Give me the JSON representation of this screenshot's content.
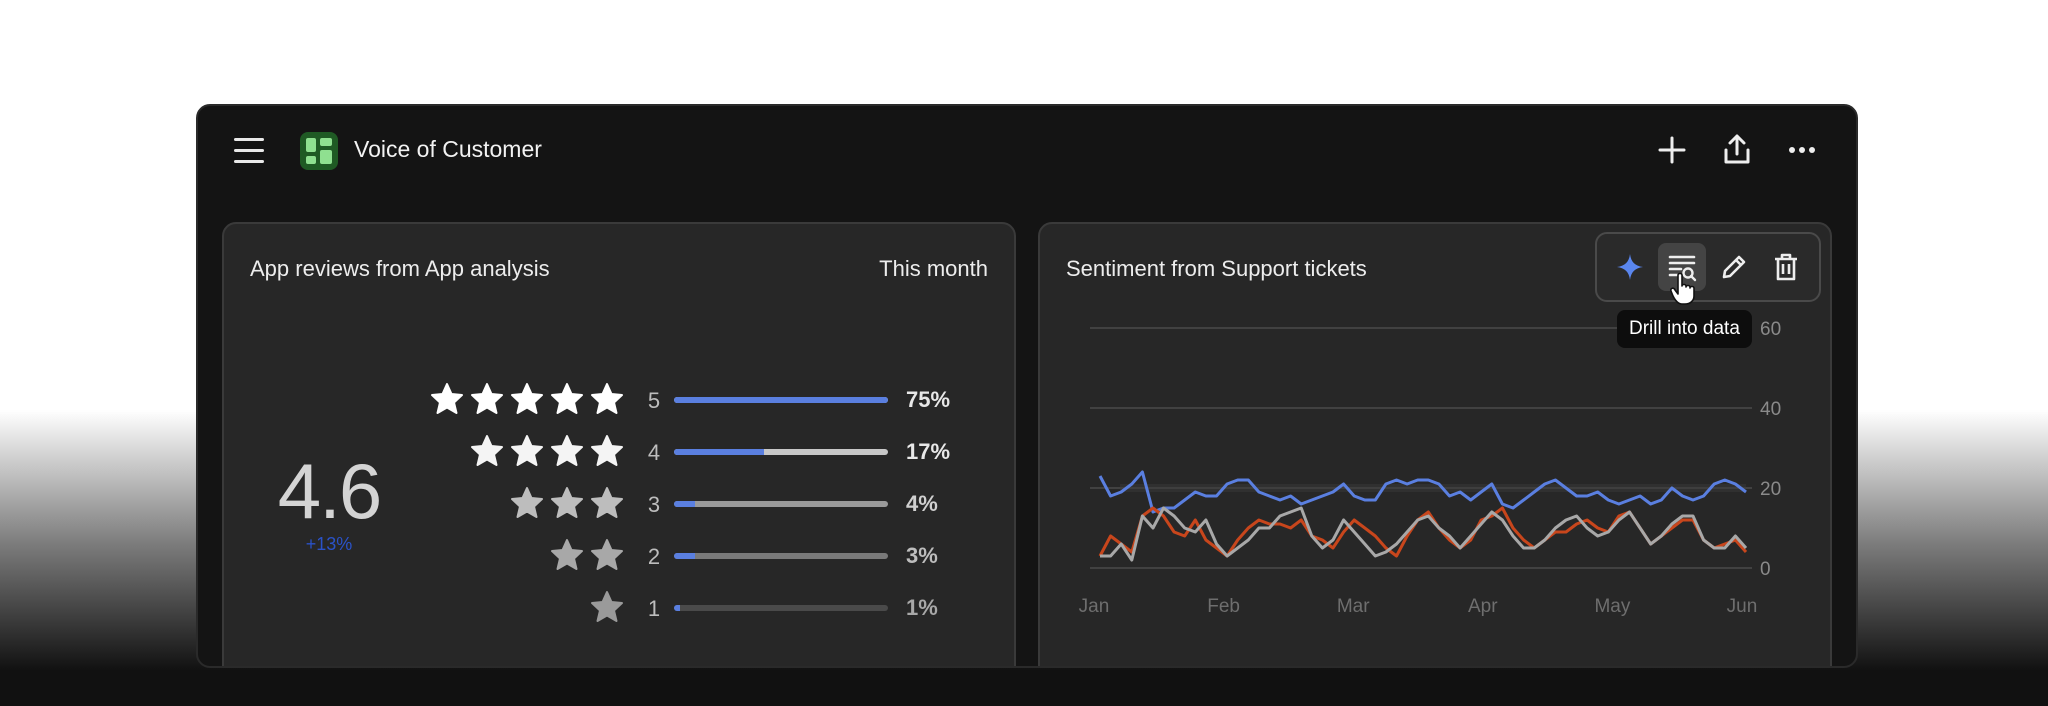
{
  "header": {
    "app_title": "Voice of Customer",
    "icons": [
      "menu-icon",
      "dashboard-logo-icon",
      "plus-icon",
      "share-icon",
      "more-icon"
    ]
  },
  "reviews_card": {
    "title": "App reviews from App analysis",
    "range": "This month",
    "average_rating": "4.6",
    "change": "+13%",
    "rows": [
      {
        "stars": 5,
        "label": "5",
        "pct_text": "75%",
        "fill": 1.0
      },
      {
        "stars": 4,
        "label": "4",
        "pct_text": "17%",
        "fill": 0.42
      },
      {
        "stars": 3,
        "label": "3",
        "pct_text": "4%",
        "fill": 0.1
      },
      {
        "stars": 2,
        "label": "2",
        "pct_text": "3%",
        "fill": 0.1
      },
      {
        "stars": 1,
        "label": "1",
        "pct_text": "1%",
        "fill": 0.03
      }
    ]
  },
  "sentiment_card": {
    "title": "Sentiment from Support tickets",
    "toolbar": {
      "buttons": [
        "ai-sparkle-icon",
        "drill-data-icon",
        "edit-pencil-icon",
        "delete-trash-icon"
      ],
      "tooltip": "Drill into data"
    }
  },
  "colors": {
    "accent_blue": "#5a7fe0",
    "series_orange": "#c8461c",
    "series_gray": "#a8a8a8",
    "change_blue": "#2a52c8"
  },
  "chart_data": {
    "type": "line",
    "xlabel": "",
    "ylabel": "",
    "x_tick_labels": [
      "Jan",
      "Feb",
      "Mar",
      "Apr",
      "May",
      "Jun"
    ],
    "y_tick_labels": [
      "0",
      "20",
      "40",
      "60"
    ],
    "ylim": [
      0,
      60
    ],
    "grid": true,
    "series": [
      {
        "values": [
          23,
          18,
          19,
          21,
          24,
          14,
          15,
          15,
          17,
          19,
          18,
          18,
          21,
          22,
          22,
          19,
          18,
          17,
          18,
          16,
          17,
          18,
          19,
          21,
          18,
          17,
          17,
          21,
          22,
          21,
          22,
          22,
          21,
          18,
          19,
          17,
          19,
          21,
          16,
          15,
          17,
          19,
          21,
          22,
          20,
          18,
          18,
          19,
          17,
          16,
          17,
          18,
          16,
          17,
          20,
          18,
          17,
          18,
          21,
          22,
          21,
          19
        ]
      },
      {
        "values": [
          3,
          8,
          6,
          4,
          13,
          15,
          13,
          9,
          8,
          12,
          7,
          5,
          3,
          7,
          10,
          12,
          11,
          11,
          10,
          12,
          8,
          7,
          5,
          9,
          12,
          10,
          8,
          5,
          3,
          8,
          12,
          14,
          10,
          7,
          5,
          7,
          12,
          13,
          15,
          10,
          7,
          5,
          7,
          9,
          9,
          11,
          12,
          10,
          9,
          13,
          14,
          10,
          6,
          8,
          10,
          12,
          12,
          7,
          5,
          6,
          7,
          4
        ]
      },
      {
        "values": [
          3,
          3,
          6,
          2,
          13,
          10,
          15,
          13,
          10,
          9,
          12,
          6,
          3,
          5,
          7,
          10,
          10,
          13,
          14,
          15,
          8,
          5,
          7,
          12,
          9,
          6,
          3,
          4,
          6,
          9,
          12,
          13,
          10,
          8,
          5,
          8,
          11,
          14,
          12,
          8,
          5,
          5,
          7,
          10,
          12,
          13,
          10,
          8,
          9,
          12,
          14,
          10,
          6,
          8,
          11,
          13,
          13,
          7,
          5,
          5,
          8,
          5
        ]
      }
    ]
  }
}
